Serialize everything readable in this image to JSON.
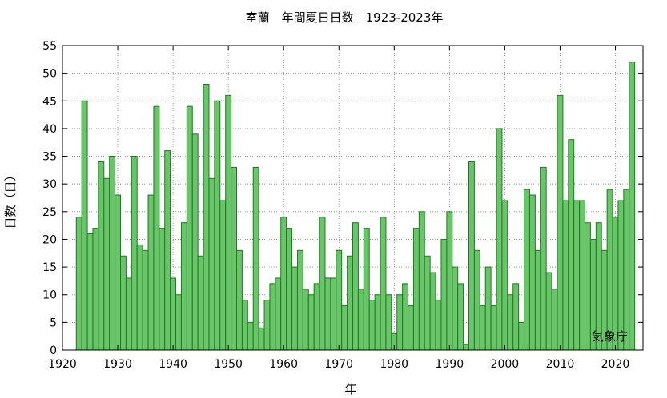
{
  "chart_data": {
    "type": "bar",
    "title": "室蘭　年間夏日日数　1923-2023年",
    "xlabel": "年",
    "ylabel": "日数（日）",
    "credit": "気象庁",
    "xlim": [
      1920,
      2025
    ],
    "ylim": [
      0,
      55
    ],
    "grid": true,
    "x_ticks": [
      1920,
      1930,
      1940,
      1950,
      1960,
      1970,
      1980,
      1990,
      2000,
      2010,
      2020
    ],
    "y_ticks": [
      0,
      5,
      10,
      15,
      20,
      25,
      30,
      35,
      40,
      45,
      50,
      55
    ],
    "bar_color": "#6ac46a",
    "bar_edge_color": "#1e7a1e",
    "years": [
      1923,
      1924,
      1925,
      1926,
      1927,
      1928,
      1929,
      1930,
      1931,
      1932,
      1933,
      1934,
      1935,
      1936,
      1937,
      1938,
      1939,
      1940,
      1941,
      1942,
      1943,
      1944,
      1945,
      1946,
      1947,
      1948,
      1949,
      1950,
      1951,
      1952,
      1953,
      1954,
      1955,
      1956,
      1957,
      1958,
      1959,
      1960,
      1961,
      1962,
      1963,
      1964,
      1965,
      1966,
      1967,
      1968,
      1969,
      1970,
      1971,
      1972,
      1973,
      1974,
      1975,
      1976,
      1977,
      1978,
      1979,
      1980,
      1981,
      1982,
      1983,
      1984,
      1985,
      1986,
      1987,
      1988,
      1989,
      1990,
      1991,
      1992,
      1993,
      1994,
      1995,
      1996,
      1997,
      1998,
      1999,
      2000,
      2001,
      2002,
      2003,
      2004,
      2005,
      2006,
      2007,
      2008,
      2009,
      2010,
      2011,
      2012,
      2013,
      2014,
      2015,
      2016,
      2017,
      2018,
      2019,
      2020,
      2021,
      2022,
      2023
    ],
    "values": [
      24,
      45,
      21,
      22,
      34,
      31,
      35,
      28,
      17,
      13,
      35,
      19,
      18,
      28,
      44,
      22,
      36,
      13,
      10,
      23,
      44,
      39,
      17,
      48,
      31,
      45,
      27,
      46,
      33,
      18,
      9,
      5,
      33,
      4,
      9,
      12,
      13,
      24,
      22,
      15,
      18,
      11,
      10,
      12,
      24,
      13,
      13,
      18,
      8,
      17,
      23,
      11,
      22,
      9,
      10,
      24,
      10,
      3,
      10,
      12,
      8,
      22,
      25,
      17,
      14,
      9,
      20,
      25,
      15,
      12,
      1,
      34,
      18,
      8,
      15,
      8,
      40,
      27,
      10,
      12,
      5,
      29,
      28,
      18,
      33,
      14,
      11,
      46,
      27,
      38,
      27,
      27,
      23,
      20,
      23,
      18,
      29,
      24,
      27,
      29,
      52
    ]
  }
}
